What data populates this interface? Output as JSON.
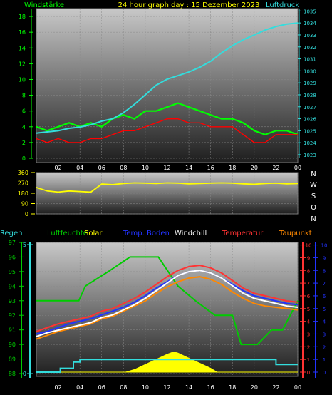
{
  "header": {
    "left_label": "Windstärke",
    "title": "24 hour graph day : 15 Dezember 2023",
    "right_label": "Luftdruck"
  },
  "legend": {
    "regen": "Regen",
    "luftfeuchte": "Luftfeuchte",
    "solar": "Solar",
    "temp_boden": "Temp. Boden",
    "windchill": "Windchill",
    "temperatur": "Temperatur",
    "taupunkt": "Taupunkt"
  },
  "colors": {
    "wind": "#00ff00",
    "pressure": "#33dddd",
    "gust": "#ff0000",
    "direction": "#ffff00",
    "humidity": "#00cc00",
    "temperature": "#ff3333",
    "windchill": "#ffffff",
    "dewpoint": "#ff8800",
    "soil": "#2233ff",
    "rain": "#33dddd",
    "solar": "#ffff00"
  },
  "chart_data": [
    {
      "type": "line",
      "name": "wind_pressure",
      "x_ticks": [
        "02",
        "04",
        "06",
        "08",
        "10",
        "12",
        "14",
        "16",
        "18",
        "20",
        "22",
        "00"
      ],
      "y_left_ticks": [
        "0",
        "2",
        "4",
        "6",
        "8",
        "10",
        "12",
        "14",
        "16",
        "18"
      ],
      "y_left_range": [
        0,
        19
      ],
      "y_right_ticks": [
        "1023",
        "1024",
        "1025",
        "1026",
        "1027",
        "1028",
        "1029",
        "1030",
        "1031",
        "1032",
        "1033",
        "1034",
        "1035"
      ],
      "y_right_range": [
        1022.7,
        1035.2
      ],
      "series": [
        {
          "name": "Luftdruck",
          "axis": "right",
          "x": [
            0,
            1,
            2,
            3,
            4,
            5,
            6,
            7,
            8,
            9,
            10,
            11,
            12,
            13,
            14,
            15,
            16,
            17,
            18,
            19,
            20,
            21,
            22,
            23,
            24
          ],
          "values": [
            1024.8,
            1024.9,
            1025.0,
            1025.2,
            1025.3,
            1025.5,
            1025.8,
            1026.0,
            1026.5,
            1027.2,
            1028.0,
            1028.8,
            1029.3,
            1029.6,
            1029.9,
            1030.3,
            1030.8,
            1031.5,
            1032.1,
            1032.6,
            1033.0,
            1033.4,
            1033.7,
            1033.9,
            1034.0
          ]
        },
        {
          "name": "Windstärke",
          "axis": "left",
          "x": [
            0,
            1,
            2,
            3,
            4,
            5,
            6,
            7,
            8,
            9,
            10,
            11,
            12,
            13,
            14,
            15,
            16,
            17,
            18,
            19,
            20,
            21,
            22,
            23,
            24
          ],
          "values": [
            4.0,
            3.5,
            4.0,
            4.5,
            4.0,
            4.5,
            4.0,
            5.0,
            5.5,
            5.0,
            6.0,
            6.0,
            6.5,
            7.0,
            6.5,
            6.0,
            5.5,
            5.0,
            5.0,
            4.5,
            3.5,
            3.0,
            3.5,
            3.5,
            3.0
          ]
        },
        {
          "name": "Böen",
          "axis": "left",
          "x": [
            0,
            1,
            2,
            3,
            4,
            5,
            6,
            7,
            8,
            9,
            10,
            11,
            12,
            13,
            14,
            15,
            16,
            17,
            18,
            19,
            20,
            21,
            22,
            23,
            24
          ],
          "values": [
            2.5,
            2.0,
            2.5,
            2.0,
            2.0,
            2.5,
            2.5,
            3.0,
            3.5,
            3.5,
            4.0,
            4.5,
            5.0,
            5.0,
            4.5,
            4.5,
            4.0,
            4.0,
            4.0,
            3.0,
            2.0,
            2.0,
            3.0,
            3.0,
            3.0
          ]
        }
      ]
    },
    {
      "type": "line",
      "name": "wind_direction",
      "x_ticks": [
        "02",
        "04",
        "06",
        "08",
        "10",
        "12",
        "14",
        "16",
        "18",
        "20",
        "22",
        "00"
      ],
      "y_ticks": [
        "0",
        "90",
        "180",
        "270",
        "360"
      ],
      "y_range": [
        0,
        360
      ],
      "right_labels": [
        "N",
        "W",
        "S",
        "O",
        "N"
      ],
      "series": [
        {
          "name": "Windrichtung",
          "x": [
            0,
            1,
            2,
            3,
            4,
            5,
            6,
            7,
            8,
            9,
            10,
            11,
            12,
            13,
            14,
            15,
            16,
            17,
            18,
            19,
            20,
            21,
            22,
            23,
            24
          ],
          "values": [
            230,
            200,
            190,
            200,
            195,
            190,
            260,
            255,
            265,
            270,
            268,
            265,
            270,
            268,
            262,
            265,
            268,
            270,
            268,
            262,
            258,
            265,
            268,
            262,
            265
          ]
        }
      ]
    },
    {
      "type": "line",
      "name": "temperature_humidity",
      "x_ticks": [
        "02",
        "04",
        "06",
        "08",
        "10",
        "12",
        "14",
        "16",
        "18",
        "20",
        "22",
        "00"
      ],
      "humidity_ticks": [
        "88",
        "89",
        "90",
        "91",
        "92",
        "93",
        "94",
        "95",
        "96",
        "97"
      ],
      "humidity_range": [
        88,
        97
      ],
      "temp_ticks": [
        "0",
        "1",
        "2",
        "3",
        "4",
        "5",
        "6",
        "7",
        "8",
        "9",
        "10"
      ],
      "temp_range": [
        0,
        10.2
      ],
      "rain_ticks": [
        "0",
        "5"
      ],
      "series": [
        {
          "name": "Luftfeuchte",
          "x": [
            0,
            1.3,
            1.3,
            1.8,
            1.8,
            3.9,
            3.9,
            4.5,
            4.5,
            6.6,
            6.6,
            8.6,
            8.6,
            11.2,
            11.2,
            13.0,
            13.0,
            14.6,
            14.6,
            16.4,
            16.4,
            18.0,
            18.0,
            18.8,
            18.8,
            20.3,
            20.3,
            21.6,
            21.6,
            22.6,
            22.6,
            24
          ],
          "values": [
            93,
            93,
            93,
            93,
            93,
            93,
            93,
            94,
            94,
            95,
            95,
            96,
            96,
            96,
            96,
            94,
            94,
            93,
            93,
            92,
            92,
            92,
            92,
            90,
            90,
            90,
            90,
            91,
            91,
            91,
            91,
            93
          ]
        },
        {
          "name": "Temperatur",
          "x": [
            0,
            1,
            2,
            3,
            4,
            5,
            6,
            7,
            8,
            9,
            10,
            11,
            12,
            13,
            14,
            15,
            16,
            17,
            18,
            19,
            20,
            21,
            22,
            23,
            24
          ],
          "values": [
            3.2,
            3.5,
            3.8,
            4.0,
            4.2,
            4.4,
            4.8,
            5.0,
            5.4,
            5.8,
            6.3,
            6.9,
            7.5,
            8.0,
            8.3,
            8.4,
            8.2,
            7.8,
            7.2,
            6.6,
            6.2,
            6.0,
            5.8,
            5.6,
            5.5
          ]
        },
        {
          "name": "Windchill",
          "x": [
            0,
            1,
            2,
            3,
            4,
            5,
            6,
            7,
            8,
            9,
            10,
            11,
            12,
            13,
            14,
            15,
            16,
            17,
            18,
            19,
            20,
            21,
            22,
            23,
            24
          ],
          "values": [
            2.8,
            3.1,
            3.3,
            3.5,
            3.7,
            3.9,
            4.3,
            4.5,
            4.9,
            5.3,
            5.8,
            6.4,
            7.0,
            7.6,
            7.9,
            8.0,
            7.8,
            7.4,
            6.8,
            6.2,
            5.8,
            5.6,
            5.4,
            5.2,
            5.1
          ]
        },
        {
          "name": "Temp. Boden",
          "x": [
            0,
            1,
            2,
            3,
            4,
            5,
            6,
            7,
            8,
            9,
            10,
            11,
            12,
            13,
            14,
            15,
            16,
            17,
            18,
            19,
            20,
            21,
            22,
            23,
            24
          ],
          "values": [
            3.0,
            3.2,
            3.5,
            3.8,
            4.0,
            4.2,
            4.5,
            4.8,
            5.1,
            5.5,
            6.0,
            6.6,
            7.1,
            7.6,
            7.9,
            8.0,
            7.8,
            7.4,
            6.9,
            6.4,
            6.0,
            5.8,
            5.6,
            5.4,
            5.3
          ]
        },
        {
          "name": "Taupunkt",
          "x": [
            0,
            1,
            2,
            3,
            4,
            5,
            6,
            7,
            8,
            9,
            10,
            11,
            12,
            13,
            14,
            15,
            16,
            17,
            18,
            19,
            20,
            21,
            22,
            23,
            24
          ],
          "values": [
            2.6,
            2.9,
            3.2,
            3.4,
            3.6,
            3.8,
            4.2,
            4.4,
            4.8,
            5.2,
            5.6,
            6.2,
            6.7,
            7.1,
            7.4,
            7.5,
            7.3,
            6.9,
            6.3,
            5.8,
            5.4,
            5.2,
            5.1,
            5.0,
            4.9
          ]
        },
        {
          "name": "Regen",
          "x": [
            0,
            2.2,
            2.2,
            3.4,
            3.4,
            4.0,
            4.0,
            22.0,
            22.0,
            24
          ],
          "values": [
            0,
            0,
            0.3,
            0.3,
            0.8,
            0.8,
            1.0,
            1.0,
            0.6,
            0.6
          ]
        },
        {
          "name": "Solar",
          "x": [
            0,
            8.2,
            9,
            10,
            11,
            12,
            12.6,
            13,
            14,
            15,
            16,
            16.6,
            24
          ],
          "values": [
            0,
            0,
            0.2,
            0.6,
            1.0,
            1.4,
            1.6,
            1.5,
            1.1,
            0.7,
            0.3,
            0,
            0
          ]
        }
      ]
    }
  ]
}
